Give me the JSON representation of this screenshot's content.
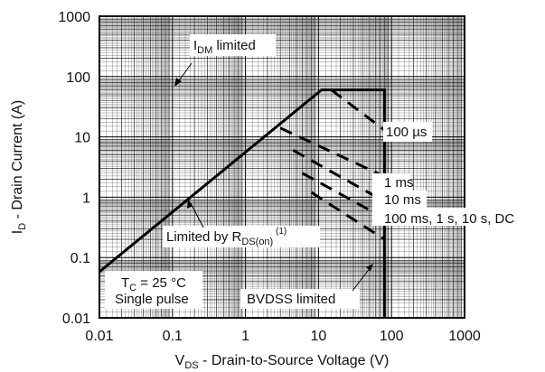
{
  "chart_data": {
    "type": "line",
    "xscale": "log",
    "yscale": "log",
    "xlim": [
      0.01,
      1000
    ],
    "ylim": [
      0.01,
      1000
    ],
    "grid": true,
    "x_ticks": [
      "0.01",
      "0.1",
      "1",
      "10",
      "100",
      "1000"
    ],
    "y_ticks": [
      "0.01",
      "0.1",
      "1",
      "10",
      "100",
      "1000"
    ],
    "xlabel": {
      "main": "V",
      "sub": "DS",
      "rest": " - Drain-to-Source Voltage (V)"
    },
    "ylabel": {
      "main": "I",
      "sub": "D",
      "rest": " - Drain Current (A)"
    },
    "series": [
      {
        "style": "solid",
        "x": [
          0.01,
          11,
          80,
          80
        ],
        "y": [
          0.058,
          60,
          60,
          0.01
        ]
      },
      {
        "style": "dashed",
        "x": [
          15,
          80
        ],
        "y": [
          60,
          13
        ]
      },
      {
        "style": "dashed",
        "x": [
          3,
          80
        ],
        "y": [
          14,
          2.2
        ]
      },
      {
        "style": "dashed",
        "x": [
          4.5,
          80
        ],
        "y": [
          6,
          0.85
        ]
      },
      {
        "style": "dashed",
        "x": [
          6,
          80
        ],
        "y": [
          2.5,
          0.45
        ]
      },
      {
        "style": "dashed",
        "x": [
          8,
          80
        ],
        "y": [
          1.2,
          0.2
        ]
      }
    ],
    "annotations": {
      "idm": {
        "main": "I",
        "sub": "DM",
        "rest": " limited"
      },
      "rds": {
        "main": "Limited by R",
        "sub": "DS(on)",
        "sup": " (1)"
      },
      "t100us": "100 µs",
      "t1ms": "1 ms",
      "t10ms": "10 ms",
      "tdc": "100 ms, 1 s, 10 s, DC",
      "tc": {
        "main": "T",
        "sub": "C",
        "rest": " = 25 °C"
      },
      "pulse": "Single pulse",
      "bvdss": "BVDSS limited"
    }
  }
}
